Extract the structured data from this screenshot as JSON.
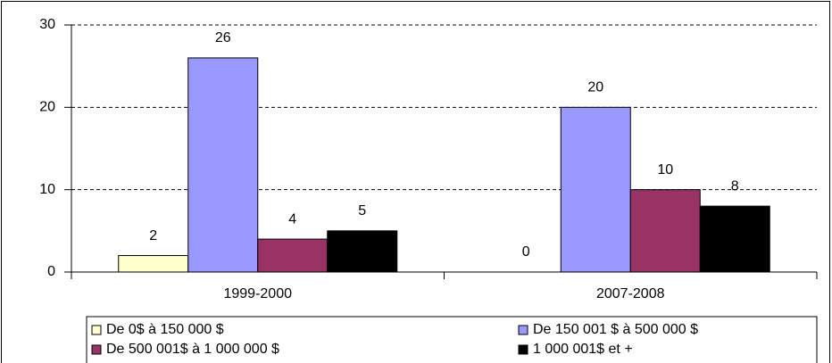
{
  "chart_data": {
    "type": "bar",
    "categories": [
      "1999-2000",
      "2007-2008"
    ],
    "series": [
      {
        "name": "De 0$ à 150 000 $",
        "color": "#ffffcc",
        "values": [
          2,
          0
        ]
      },
      {
        "name": "De 150 001 $ à 500 000 $",
        "color": "#9999ff",
        "values": [
          26,
          20
        ]
      },
      {
        "name": "De 500 001$ à 1 000 000 $",
        "color": "#993366",
        "values": [
          4,
          10
        ]
      },
      {
        "name": "1 000 001$ et +",
        "color": "#000000",
        "values": [
          5,
          8
        ]
      }
    ],
    "ylim": [
      0,
      30
    ],
    "yticks": [
      0,
      10,
      20,
      30
    ],
    "grid": true,
    "legend": "bottom"
  }
}
